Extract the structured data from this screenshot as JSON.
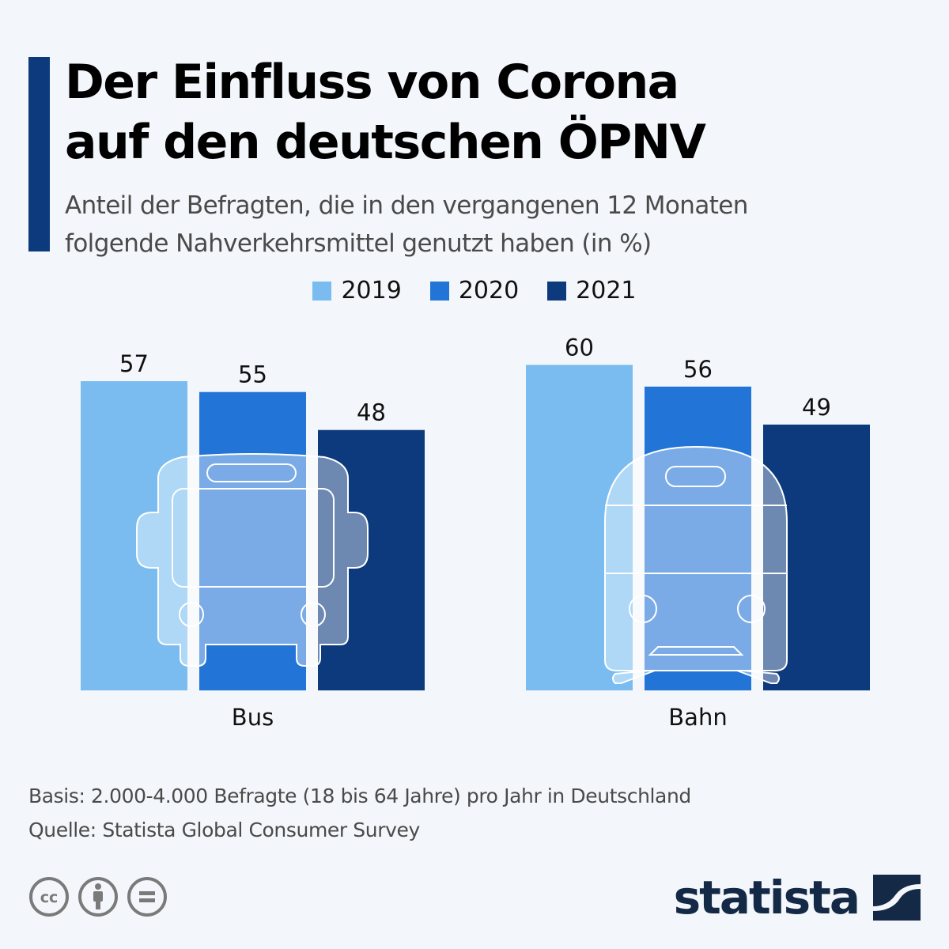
{
  "header": {
    "title_line1": "Der Einfluss von Corona",
    "title_line2": "auf den deutschen ÖPNV",
    "subtitle_line1": "Anteil der Befragten, die in den vergangenen 12 Monaten",
    "subtitle_line2": "folgende Nahverkehrsmittel genutzt haben (in %)"
  },
  "colors": {
    "accent": "#0c3a7d",
    "series_2019": "#7bbcf0",
    "series_2020": "#2274d6",
    "series_2021": "#0c3a7d",
    "background": "#f3f7fb",
    "logo": "#142945",
    "cc_gray": "#7a7a7a"
  },
  "chart_data": {
    "type": "bar",
    "title": "Der Einfluss von Corona auf den deutschen ÖPNV",
    "subtitle": "Anteil der Befragten, die in den vergangenen 12 Monaten folgende Nahverkehrsmittel genutzt haben (in %)",
    "categories": [
      "Bus",
      "Bahn"
    ],
    "category_icons": [
      "bus-icon",
      "train-icon"
    ],
    "series": [
      {
        "name": "2019",
        "values": [
          57,
          60
        ]
      },
      {
        "name": "2020",
        "values": [
          55,
          56
        ]
      },
      {
        "name": "2021",
        "values": [
          48,
          49
        ]
      }
    ],
    "xlabel": "",
    "ylabel": "",
    "ylim": [
      0,
      64
    ],
    "grid": false,
    "legend_position": "top-center",
    "data_labels": true
  },
  "footer": {
    "basis": "Basis: 2.000-4.000 Befragte (18 bis 64 Jahre) pro Jahr in Deutschland",
    "source": "Quelle: Statista Global Consumer Survey",
    "license_icons": [
      "cc-icon",
      "attribution-icon",
      "no-derivatives-icon"
    ],
    "logo_text": "statista"
  }
}
